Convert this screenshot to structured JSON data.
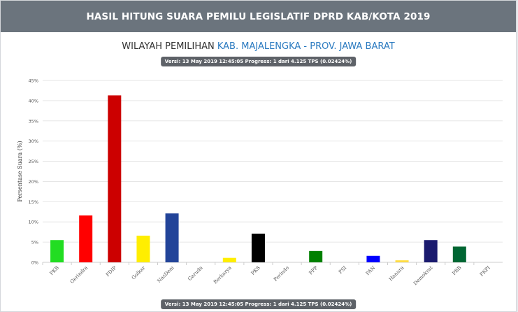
{
  "header": {
    "title": "HASIL HITUNG SUARA PEMILU LEGISLATIF DPRD KAB/KOTA 2019"
  },
  "region": {
    "label": "WILAYAH PEMILIHAN",
    "value": "KAB. MAJALENGKA - PROV. JAWA BARAT"
  },
  "version_badge": "Versi: 13 May 2019 12:45:05 Progress: 1 dari 4.125 TPS (0.02424%)",
  "chart_data": {
    "type": "bar",
    "ylabel": "Persentase Suara (%)",
    "xlabel": "",
    "ylim": [
      0,
      45
    ],
    "yticks": [
      0,
      5,
      10,
      15,
      20,
      25,
      30,
      35,
      40,
      45
    ],
    "ytick_labels": [
      "0%",
      "5%",
      "10%",
      "15%",
      "20%",
      "25%",
      "30%",
      "35%",
      "40%",
      "45%"
    ],
    "grid": true,
    "legend": "none",
    "categories": [
      "PKB",
      "Gerindra",
      "PDIP",
      "Golkar",
      "NasDem",
      "Garuda",
      "Berkarya",
      "PKS",
      "Perindo",
      "PPP",
      "PSI",
      "PAN",
      "Hanura",
      "Demokrat",
      "PBB",
      "PKPI"
    ],
    "values": [
      5.5,
      11.6,
      41.3,
      6.6,
      12.1,
      0,
      1.1,
      7.1,
      0,
      2.8,
      0,
      1.6,
      0.5,
      5.5,
      3.9,
      0
    ],
    "colors": [
      "#22dd22",
      "#ff0000",
      "#cc0000",
      "#ffee00",
      "#224499",
      "#cc0000",
      "#ffee00",
      "#000000",
      "#00008b",
      "#008000",
      "#dd2222",
      "#0000ff",
      "#ffdd44",
      "#1a1a6e",
      "#006633",
      "#cc0000"
    ]
  }
}
